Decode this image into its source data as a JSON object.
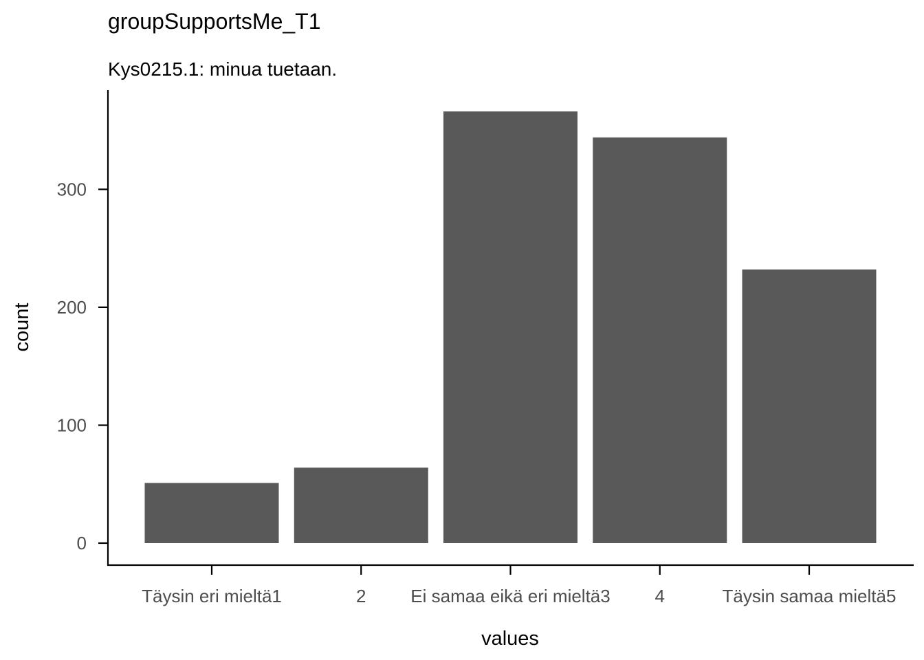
{
  "chart_data": {
    "type": "bar",
    "title": "groupSupportsMe_T1",
    "subtitle": "Kys0215.1: minua tuetaan.",
    "xlabel": "values",
    "ylabel": "count",
    "categories": [
      "Täysin eri mieltä1",
      "2",
      "Ei samaa eikä eri mieltä3",
      "4",
      "Täysin samaa mieltä5"
    ],
    "values": [
      51,
      64,
      366,
      344,
      232
    ],
    "ylim": [
      0,
      392
    ],
    "yticks": [
      0,
      100,
      200,
      300
    ],
    "grid": false,
    "legend": "none",
    "bar_color": "#595959"
  }
}
